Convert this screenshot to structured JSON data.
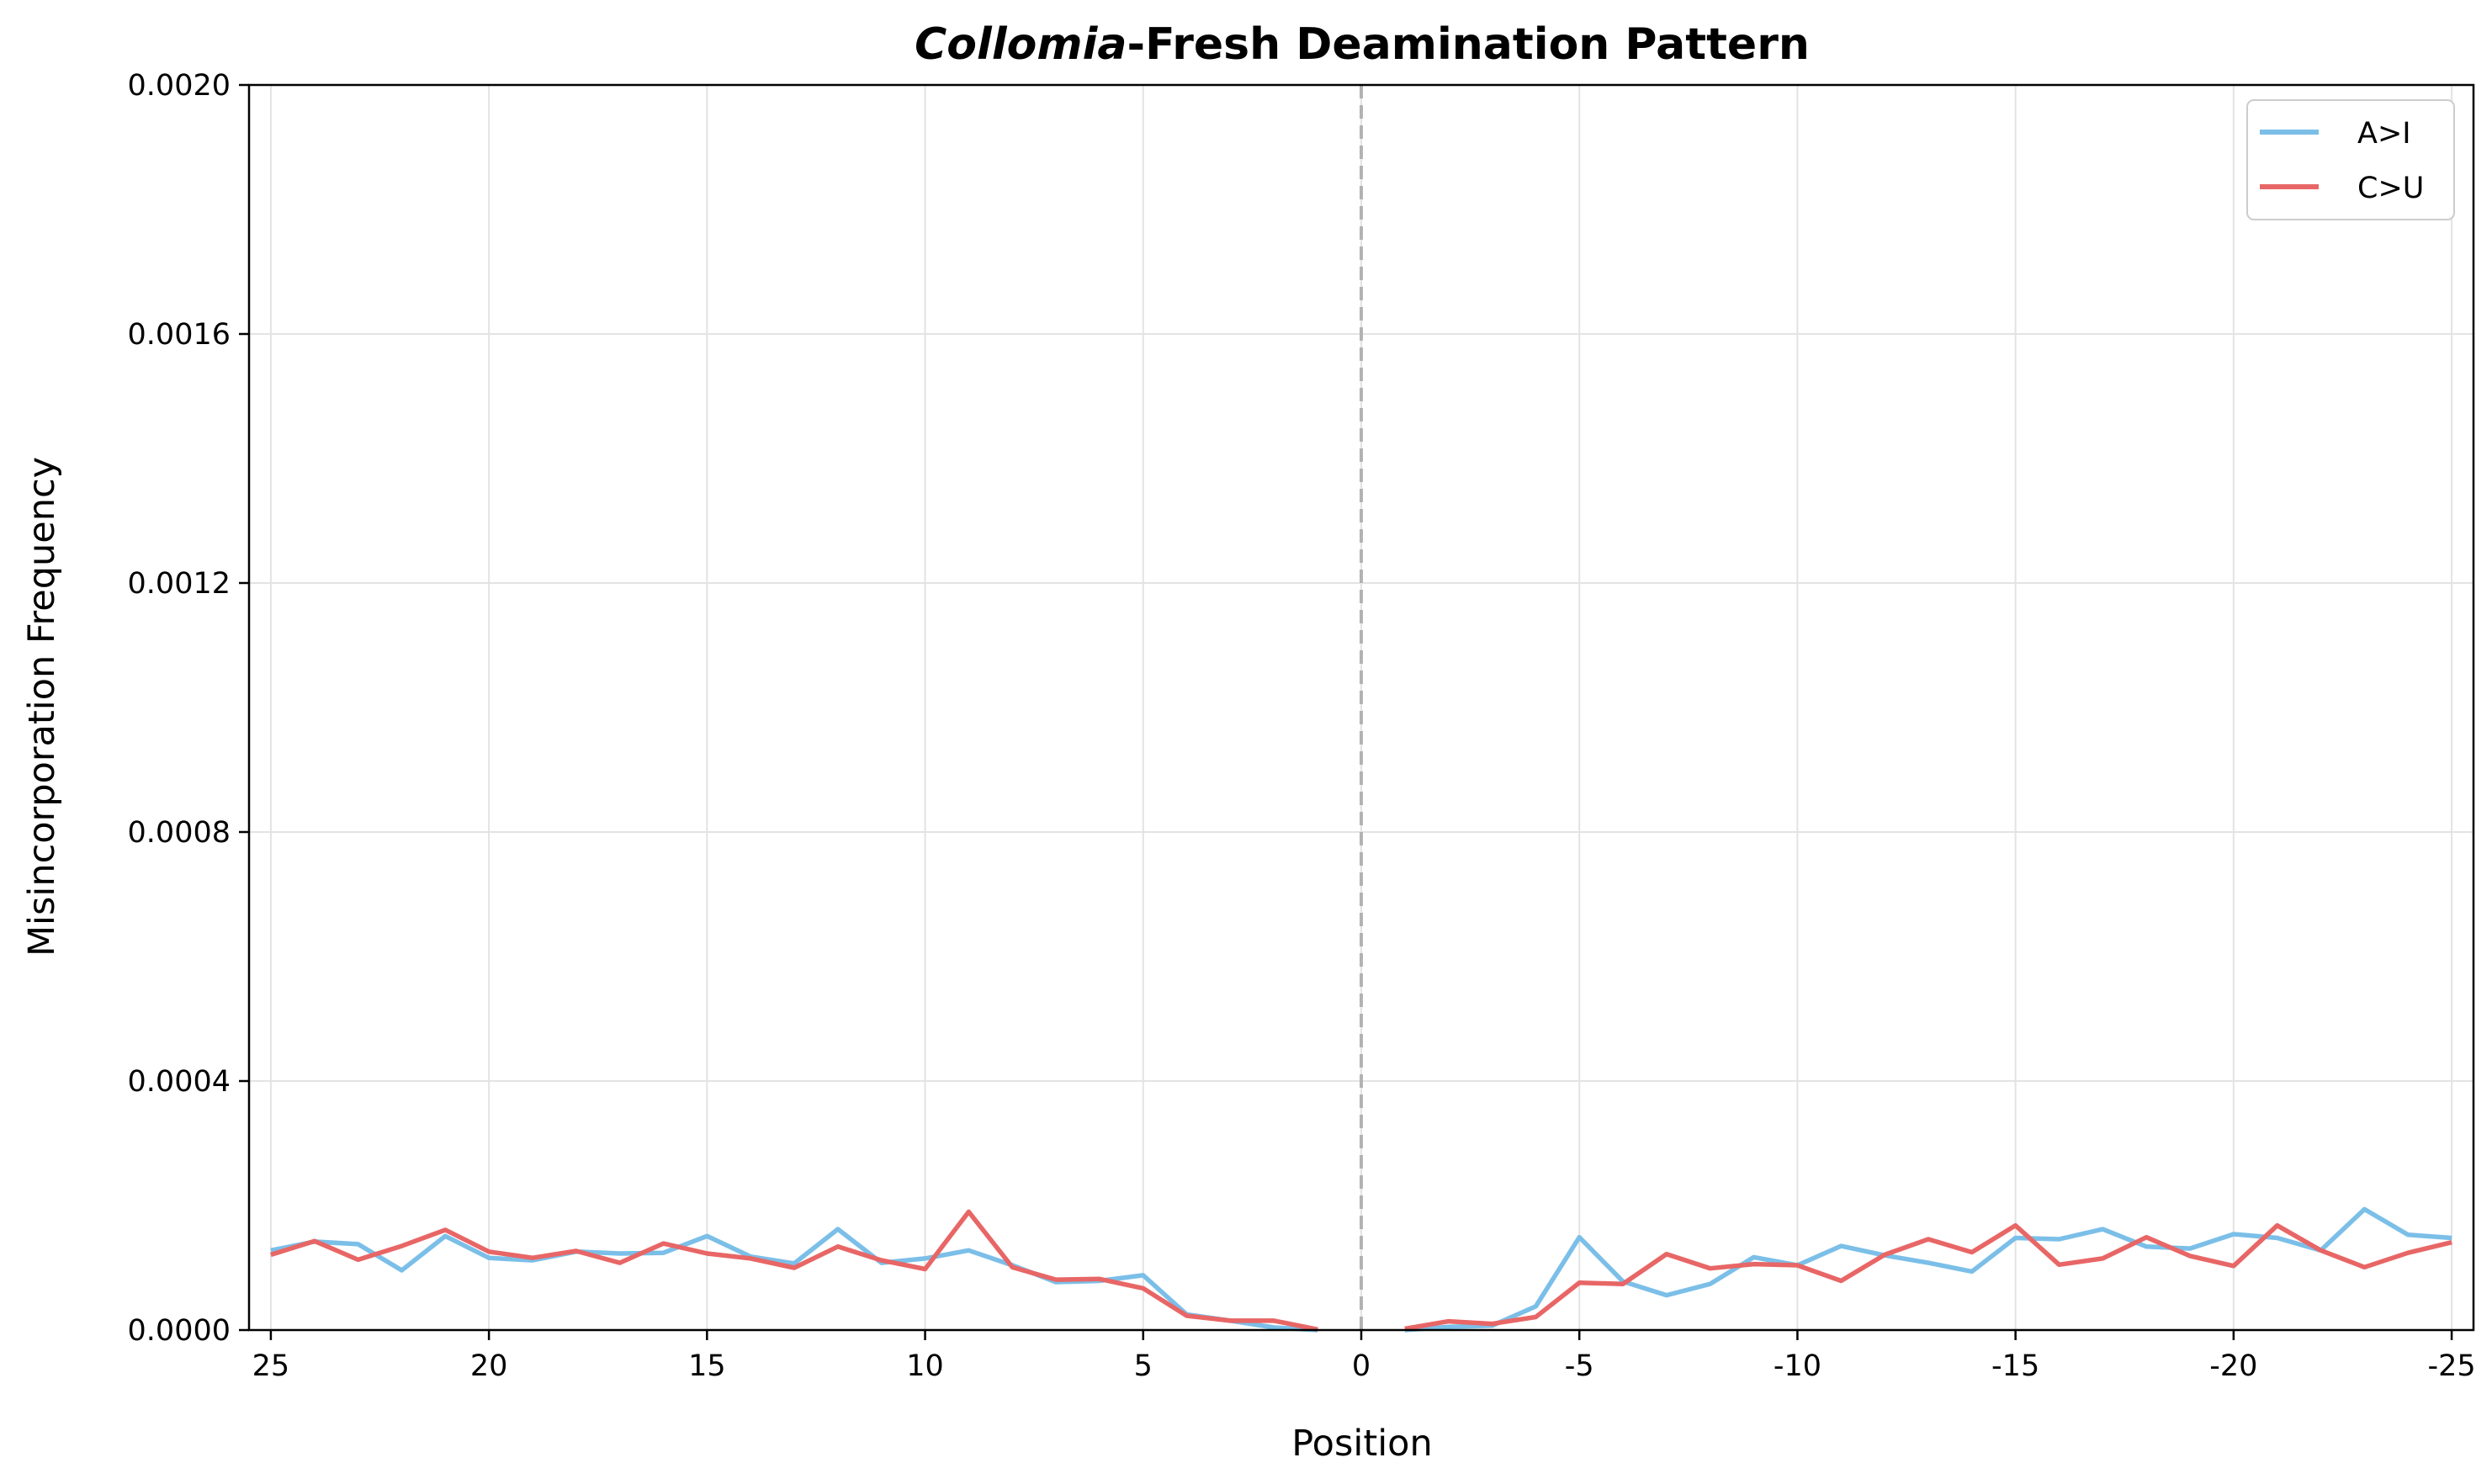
{
  "chart_data": {
    "type": "line",
    "title_italic": "Collomia",
    "title_rest": "-Fresh Deamination Pattern",
    "xlabel": "Position",
    "ylabel": "Misincorporation Frequency",
    "ylim": [
      0,
      0.002
    ],
    "yticks": [
      "0.0000",
      "0.0004",
      "0.0008",
      "0.0012",
      "0.0016",
      "0.0020"
    ],
    "xticks": [
      "25",
      "20",
      "15",
      "10",
      "5",
      "0",
      "-5",
      "-10",
      "-15",
      "-20",
      "-25"
    ],
    "grid": true,
    "legend_position": "top-right",
    "center_line": "dashed vertical line at position 0",
    "left_segment_positions": [
      25,
      24,
      23,
      22,
      21,
      20,
      19,
      18,
      17,
      16,
      15,
      14,
      13,
      12,
      11,
      10,
      9,
      8,
      7,
      6,
      5,
      4,
      3,
      2,
      1
    ],
    "right_segment_positions": [
      -1,
      -2,
      -3,
      -4,
      -5,
      -6,
      -7,
      -8,
      -9,
      -10,
      -11,
      -12,
      -13,
      -14,
      -15,
      -16,
      -17,
      -18,
      -19,
      -20,
      -21,
      -22,
      -23,
      -24,
      -25
    ],
    "series": [
      {
        "name": "A>I",
        "color": "#7bbfe8",
        "left": [
          0.000128,
          0.000142,
          0.000138,
          9.6e-05,
          0.000151,
          0.000116,
          0.000112,
          0.000126,
          0.000123,
          0.000124,
          0.000151,
          0.000118,
          0.000107,
          0.000162,
          0.000108,
          0.000115,
          0.000128,
          0.000104,
          7.7e-05,
          7.9e-05,
          8.8e-05,
          2.5e-05,
          1.5e-05,
          4e-06,
          0.0
        ],
        "right": [
          0.0,
          5e-06,
          7e-06,
          3.8e-05,
          0.000149,
          7.8e-05,
          5.6e-05,
          7.4e-05,
          0.000117,
          0.000104,
          0.000135,
          0.00012,
          0.000108,
          9.4e-05,
          0.000148,
          0.000146,
          0.000162,
          0.000134,
          0.000131,
          0.000154,
          0.000148,
          0.000128,
          0.000194,
          0.000153,
          0.000148
        ]
      },
      {
        "name": "C>U",
        "color": "#e86666",
        "left": [
          0.000121,
          0.000143,
          0.000113,
          0.000135,
          0.000161,
          0.000126,
          0.000116,
          0.000127,
          0.000108,
          0.000139,
          0.000123,
          0.000115,
          0.0001,
          0.000134,
          0.000112,
          9.8e-05,
          0.00019,
          0.000101,
          8.1e-05,
          8.2e-05,
          6.7e-05,
          2.3e-05,
          1.5e-05,
          1.5e-05,
          1e-06
        ],
        "right": [
          2e-06,
          1.4e-05,
          1e-05,
          2.1e-05,
          7.6e-05,
          7.4e-05,
          0.000122,
          9.9e-05,
          0.000106,
          0.000104,
          7.9e-05,
          0.000121,
          0.000146,
          0.000125,
          0.000168,
          0.000105,
          0.000115,
          0.000149,
          0.000119,
          0.000103,
          0.000168,
          0.000128,
          0.000101,
          0.000124,
          0.000141
        ]
      }
    ]
  }
}
